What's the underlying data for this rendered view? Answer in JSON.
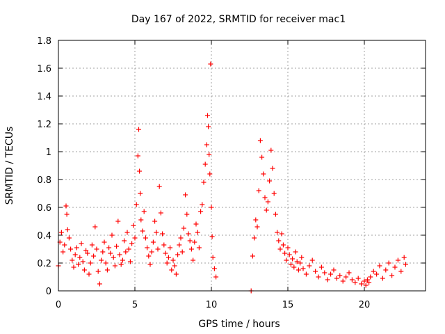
{
  "chart_data": {
    "type": "scatter",
    "title": "Day 167 of 2022, SRMTID for receiver mac1",
    "xlabel": "GPS time / hours",
    "ylabel": "SRMTID / TECUs",
    "xlim": [
      0,
      24.0
    ],
    "ylim": [
      0,
      1.8
    ],
    "xticks": [
      0,
      5,
      10,
      15,
      20
    ],
    "xtick_labels": [
      "0",
      "5",
      "10",
      "15",
      "20"
    ],
    "yticks": [
      0,
      0.2,
      0.4,
      0.6,
      0.8,
      1.0,
      1.2,
      1.4,
      1.6,
      1.8
    ],
    "ytick_labels": [
      "0",
      "0.2",
      "0.4",
      "0.6",
      "0.8",
      "1",
      "1.2",
      "1.4",
      "1.6",
      "1.8"
    ],
    "grid": true,
    "marker": "+",
    "color": "#ff0000",
    "series": [
      {
        "name": "SRMTID",
        "x": [
          0.0,
          0.1,
          0.2,
          0.3,
          0.4,
          0.5,
          0.55,
          0.6,
          0.7,
          0.8,
          0.9,
          1.0,
          1.1,
          1.2,
          1.3,
          1.4,
          1.5,
          1.6,
          1.7,
          1.8,
          1.9,
          2.0,
          2.1,
          2.2,
          2.3,
          2.4,
          2.5,
          2.6,
          2.7,
          2.8,
          2.9,
          3.0,
          3.1,
          3.2,
          3.3,
          3.4,
          3.5,
          3.6,
          3.7,
          3.8,
          3.9,
          4.0,
          4.1,
          4.2,
          4.3,
          4.4,
          4.5,
          4.6,
          4.7,
          4.8,
          4.9,
          5.0,
          5.1,
          5.2,
          5.25,
          5.3,
          5.35,
          5.4,
          5.5,
          5.6,
          5.7,
          5.8,
          5.9,
          6.0,
          6.1,
          6.2,
          6.3,
          6.4,
          6.5,
          6.6,
          6.7,
          6.8,
          6.9,
          7.0,
          7.1,
          7.2,
          7.3,
          7.4,
          7.5,
          7.6,
          7.7,
          7.8,
          7.9,
          8.0,
          8.1,
          8.2,
          8.3,
          8.4,
          8.5,
          8.6,
          8.7,
          8.8,
          8.9,
          9.0,
          9.1,
          9.2,
          9.3,
          9.4,
          9.5,
          9.6,
          9.7,
          9.75,
          9.8,
          9.85,
          9.9,
          9.95,
          10.0,
          10.05,
          10.1,
          10.2,
          10.3,
          12.6,
          12.7,
          12.8,
          12.9,
          13.0,
          13.1,
          13.2,
          13.3,
          13.4,
          13.5,
          13.6,
          13.7,
          13.8,
          13.9,
          14.0,
          14.1,
          14.2,
          14.3,
          14.4,
          14.5,
          14.6,
          14.7,
          14.8,
          14.9,
          15.0,
          15.1,
          15.2,
          15.3,
          15.4,
          15.5,
          15.6,
          15.7,
          15.8,
          15.9,
          16.0,
          16.2,
          16.4,
          16.6,
          16.8,
          17.0,
          17.2,
          17.4,
          17.6,
          17.8,
          18.0,
          18.2,
          18.4,
          18.6,
          18.8,
          19.0,
          19.2,
          19.4,
          19.6,
          19.8,
          20.0,
          20.1,
          20.2,
          20.3,
          20.4,
          20.6,
          20.8,
          21.0,
          21.2,
          21.4,
          21.6,
          21.8,
          22.0,
          22.2,
          22.4,
          22.6,
          22.7
        ],
        "y": [
          0.18,
          0.35,
          0.42,
          0.28,
          0.33,
          0.61,
          0.55,
          0.44,
          0.38,
          0.3,
          0.22,
          0.17,
          0.26,
          0.31,
          0.19,
          0.24,
          0.34,
          0.21,
          0.15,
          0.29,
          0.27,
          0.12,
          0.2,
          0.33,
          0.25,
          0.46,
          0.3,
          0.14,
          0.05,
          0.22,
          0.28,
          0.35,
          0.2,
          0.15,
          0.31,
          0.27,
          0.4,
          0.24,
          0.18,
          0.32,
          0.5,
          0.26,
          0.19,
          0.22,
          0.36,
          0.28,
          0.42,
          0.3,
          0.21,
          0.34,
          0.47,
          0.38,
          0.62,
          0.97,
          1.16,
          0.86,
          0.7,
          0.51,
          0.43,
          0.57,
          0.38,
          0.31,
          0.25,
          0.19,
          0.28,
          0.35,
          0.5,
          0.42,
          0.3,
          0.75,
          0.56,
          0.41,
          0.33,
          0.27,
          0.2,
          0.24,
          0.31,
          0.15,
          0.22,
          0.18,
          0.12,
          0.26,
          0.33,
          0.38,
          0.28,
          0.45,
          0.69,
          0.55,
          0.41,
          0.36,
          0.3,
          0.22,
          0.35,
          0.48,
          0.42,
          0.31,
          0.57,
          0.62,
          0.78,
          0.91,
          1.05,
          1.26,
          1.18,
          0.98,
          0.84,
          1.63,
          0.6,
          0.39,
          0.24,
          0.16,
          0.1,
          0.0,
          0.25,
          0.38,
          0.51,
          0.46,
          0.72,
          1.08,
          0.96,
          0.84,
          0.67,
          0.58,
          0.64,
          0.79,
          1.01,
          0.88,
          0.7,
          0.55,
          0.42,
          0.36,
          0.3,
          0.41,
          0.33,
          0.27,
          0.22,
          0.31,
          0.26,
          0.19,
          0.23,
          0.17,
          0.28,
          0.21,
          0.15,
          0.2,
          0.24,
          0.16,
          0.12,
          0.18,
          0.22,
          0.14,
          0.1,
          0.17,
          0.13,
          0.08,
          0.12,
          0.15,
          0.09,
          0.11,
          0.07,
          0.1,
          0.13,
          0.08,
          0.06,
          0.09,
          0.05,
          0.07,
          0.04,
          0.08,
          0.06,
          0.1,
          0.14,
          0.12,
          0.18,
          0.09,
          0.15,
          0.2,
          0.11,
          0.17,
          0.22,
          0.14,
          0.24,
          0.19
        ]
      }
    ]
  }
}
